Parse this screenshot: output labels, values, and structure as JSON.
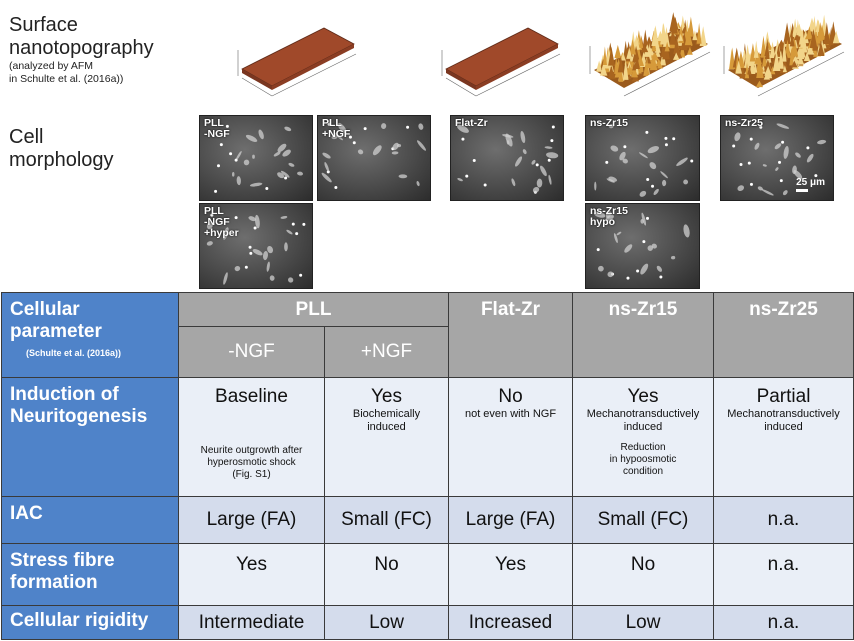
{
  "surface": {
    "title_line1": "Surface",
    "title_line2": "nanotopography",
    "note_line1": "(analyzed by AFM",
    "note_line2": "in Schulte et al. (2016a))",
    "flat_color": "#a0492a",
    "rough_color": "#c8862f"
  },
  "morphology": {
    "title_line1": "Cell",
    "title_line2": "morphology",
    "images": [
      {
        "label": "PLL\n-NGF"
      },
      {
        "label": "PLL\n+NGF"
      },
      {
        "label": "Flat-Zr"
      },
      {
        "label": "ns-Zr15"
      },
      {
        "label": "ns-Zr25"
      },
      {
        "label": "PLL\n-NGF\n+hyper"
      },
      {
        "label": "ns-Zr15\nhypo"
      }
    ],
    "scale_bar": "25 μm"
  },
  "table": {
    "header": {
      "param_line1": "Cellular",
      "param_line2": "parameter",
      "param_ref": "(Schulte et al. (2016a))",
      "pll": "PLL",
      "flat": "Flat-Zr",
      "ns15": "ns-Zr15",
      "ns25": "ns-Zr25",
      "minus_ngf": "-NGF",
      "plus_ngf": "+NGF"
    },
    "neuritogenesis": {
      "label_line1": "Induction of",
      "label_line2": "Neuritogenesis",
      "pll_minus": {
        "value": "Baseline",
        "note1": "Neurite outgrowth after",
        "note2": "hyperosmotic shock",
        "note3": "(Fig. S1)"
      },
      "pll_plus": {
        "value": "Yes",
        "sub1": "Biochemically",
        "sub2": "induced"
      },
      "flat": {
        "value": "No",
        "sub1": "not even with NGF"
      },
      "ns15": {
        "value": "Yes",
        "sub1": "Mechanotransductively",
        "sub2": "induced",
        "note1": "Reduction",
        "note2": "in hypoosmotic",
        "note3": "condition"
      },
      "ns25": {
        "value": "Partial",
        "sub1": "Mechanotransductively",
        "sub2": "induced"
      }
    },
    "iac": {
      "label": "IAC",
      "values": [
        "Large (FA)",
        "Small (FC)",
        "Large (FA)",
        "Small (FC)",
        "n.a."
      ]
    },
    "stress": {
      "label_line1": "Stress fibre",
      "label_line2": "formation",
      "values": [
        "Yes",
        "No",
        "Yes",
        "No",
        "n.a."
      ]
    },
    "rigidity": {
      "label": "Cellular rigidity",
      "values": [
        "Intermediate",
        "Low",
        "Increased",
        "Low",
        "n.a."
      ]
    }
  },
  "colors": {
    "row_header": "#4f83c9",
    "group_header": "#a6a6a6",
    "cell_light": "#eaeff7",
    "cell_dark": "#d4dcec"
  }
}
